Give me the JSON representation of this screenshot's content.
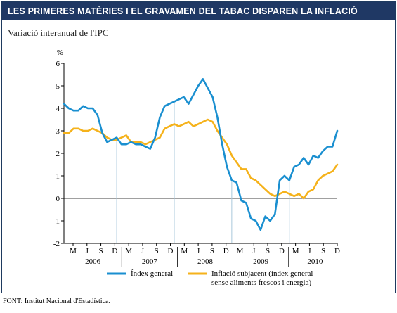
{
  "chart_data": {
    "type": "line",
    "title": "LES PRIMERES MATÈRIES I EL GRAVAMEN DEL TABAC DISPAREN LA INFLACIÓ",
    "subtitle": "Variació interanual de l'IPC",
    "ylabel": "%",
    "ylim": [
      -2,
      6
    ],
    "yticks": [
      -2,
      -1,
      0,
      1,
      2,
      3,
      4,
      5,
      6
    ],
    "x_month_labels": [
      "M",
      "J",
      "S",
      "D",
      "M",
      "J",
      "S",
      "D",
      "M",
      "J",
      "S",
      "D",
      "M",
      "J",
      "S",
      "D",
      "M",
      "J",
      "S",
      "D"
    ],
    "x_year_labels": [
      "2006",
      "2007",
      "2008",
      "2009",
      "2010"
    ],
    "series": [
      {
        "name": "Índex general",
        "color": "#1a8fd0",
        "values": [
          4.2,
          4.0,
          3.9,
          3.9,
          4.1,
          4.0,
          4.0,
          3.7,
          2.9,
          2.5,
          2.6,
          2.7,
          2.4,
          2.4,
          2.5,
          2.4,
          2.4,
          2.3,
          2.2,
          2.7,
          3.6,
          4.1,
          4.2,
          4.3,
          4.4,
          4.5,
          4.2,
          4.6,
          5.0,
          5.3,
          4.9,
          4.5,
          3.6,
          2.4,
          1.4,
          0.8,
          0.7,
          -0.1,
          -0.2,
          -0.9,
          -1.0,
          -1.4,
          -0.8,
          -1.0,
          -0.7,
          0.8,
          1.0,
          0.8,
          1.4,
          1.5,
          1.8,
          1.5,
          1.9,
          1.8,
          2.1,
          2.3,
          2.3,
          3.0
        ]
      },
      {
        "name": "Inflació subjacent (índex general sense aliments frescos i energia)",
        "color": "#f5b21b",
        "values": [
          2.9,
          2.9,
          3.1,
          3.1,
          3.0,
          3.0,
          3.1,
          3.0,
          2.9,
          2.7,
          2.6,
          2.6,
          2.7,
          2.8,
          2.5,
          2.5,
          2.5,
          2.4,
          2.5,
          2.6,
          2.7,
          3.1,
          3.2,
          3.3,
          3.2,
          3.3,
          3.4,
          3.2,
          3.3,
          3.4,
          3.5,
          3.4,
          3.0,
          2.7,
          2.4,
          1.9,
          1.6,
          1.3,
          1.3,
          0.9,
          0.8,
          0.6,
          0.4,
          0.2,
          0.1,
          0.2,
          0.3,
          0.2,
          0.1,
          0.2,
          0.0,
          0.3,
          0.4,
          0.8,
          1.0,
          1.1,
          1.2,
          1.5
        ]
      }
    ],
    "reference_lines_at": [
      11,
      23,
      35,
      47
    ],
    "grid": false,
    "legend_position": "bottom"
  },
  "source": "FONT: Institut Nacional d'Estadística."
}
